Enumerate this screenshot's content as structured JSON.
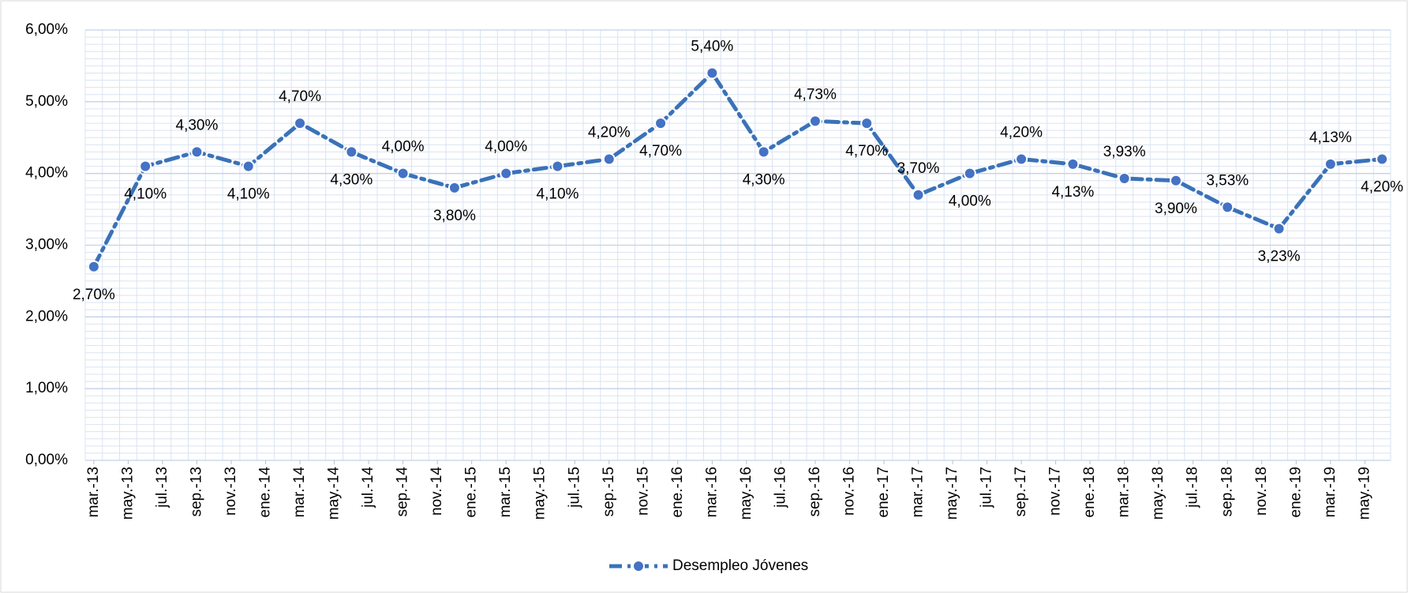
{
  "chart_data": {
    "type": "line",
    "x": [
      "2013-03",
      "2013-06",
      "2013-09",
      "2013-12",
      "2014-03",
      "2014-06",
      "2014-09",
      "2014-12",
      "2015-03",
      "2015-06",
      "2015-09",
      "2015-12",
      "2016-03",
      "2016-06",
      "2016-09",
      "2016-12",
      "2017-03",
      "2017-06",
      "2017-09",
      "2017-12",
      "2018-03",
      "2018-06",
      "2018-09",
      "2018-12",
      "2019-03",
      "2019-06"
    ],
    "series": [
      {
        "name": "Desempleo Jóvenes",
        "color": "#3a72b8",
        "values": [
          2.7,
          4.1,
          4.3,
          4.1,
          4.7,
          4.3,
          4.0,
          3.8,
          4.0,
          4.1,
          4.2,
          4.7,
          5.4,
          4.3,
          4.73,
          4.7,
          3.7,
          4.0,
          4.2,
          4.13,
          3.93,
          3.9,
          3.53,
          3.23,
          4.13,
          4.2
        ],
        "value_labels": [
          "2,70%",
          "4,10%",
          "4,30%",
          "4,10%",
          "4,70%",
          "4,30%",
          "4,00%",
          "3,80%",
          "4,00%",
          "4,10%",
          "4,20%",
          "4,70%",
          "5,40%",
          "4,30%",
          "4,73%",
          "4,70%",
          "3,70%",
          "4,00%",
          "4,20%",
          "4,13%",
          "3,93%",
          "3,90%",
          "3,53%",
          "3,23%",
          "4,13%",
          "4,20%"
        ]
      }
    ],
    "xlim": [
      "2013-03",
      "2019-06"
    ],
    "xticks": [
      {
        "value": "2013-03",
        "label": "mar.-13"
      },
      {
        "value": "2013-05",
        "label": "may.-13"
      },
      {
        "value": "2013-07",
        "label": "jul.-13"
      },
      {
        "value": "2013-09",
        "label": "sep.-13"
      },
      {
        "value": "2013-11",
        "label": "nov.-13"
      },
      {
        "value": "2014-01",
        "label": "ene.-14"
      },
      {
        "value": "2014-03",
        "label": "mar.-14"
      },
      {
        "value": "2014-05",
        "label": "may.-14"
      },
      {
        "value": "2014-07",
        "label": "jul.-14"
      },
      {
        "value": "2014-09",
        "label": "sep.-14"
      },
      {
        "value": "2014-11",
        "label": "nov.-14"
      },
      {
        "value": "2015-01",
        "label": "ene.-15"
      },
      {
        "value": "2015-03",
        "label": "mar.-15"
      },
      {
        "value": "2015-05",
        "label": "may.-15"
      },
      {
        "value": "2015-07",
        "label": "jul.-15"
      },
      {
        "value": "2015-09",
        "label": "sep.-15"
      },
      {
        "value": "2015-11",
        "label": "nov.-15"
      },
      {
        "value": "2016-01",
        "label": "ene.-16"
      },
      {
        "value": "2016-03",
        "label": "mar.-16"
      },
      {
        "value": "2016-05",
        "label": "may.-16"
      },
      {
        "value": "2016-07",
        "label": "jul.-16"
      },
      {
        "value": "2016-09",
        "label": "sep.-16"
      },
      {
        "value": "2016-11",
        "label": "nov.-16"
      },
      {
        "value": "2017-01",
        "label": "ene.-17"
      },
      {
        "value": "2017-03",
        "label": "mar.-17"
      },
      {
        "value": "2017-05",
        "label": "may.-17"
      },
      {
        "value": "2017-07",
        "label": "jul.-17"
      },
      {
        "value": "2017-09",
        "label": "sep.-17"
      },
      {
        "value": "2017-11",
        "label": "nov.-17"
      },
      {
        "value": "2018-01",
        "label": "ene.-18"
      },
      {
        "value": "2018-03",
        "label": "mar.-18"
      },
      {
        "value": "2018-05",
        "label": "may.-18"
      },
      {
        "value": "2018-07",
        "label": "jul.-18"
      },
      {
        "value": "2018-09",
        "label": "sep.-18"
      },
      {
        "value": "2018-11",
        "label": "nov.-18"
      },
      {
        "value": "2019-01",
        "label": "ene.-19"
      },
      {
        "value": "2019-03",
        "label": "mar.-19"
      },
      {
        "value": "2019-05",
        "label": "may.-19"
      }
    ],
    "ylim": [
      0,
      6
    ],
    "yticks": [
      {
        "value": 0,
        "label": "0,00%"
      },
      {
        "value": 1,
        "label": "1,00%"
      },
      {
        "value": 2,
        "label": "2,00%"
      },
      {
        "value": 3,
        "label": "3,00%"
      },
      {
        "value": 4,
        "label": "4,00%"
      },
      {
        "value": 5,
        "label": "5,00%"
      },
      {
        "value": 6,
        "label": "6,00%"
      }
    ],
    "grid": true,
    "minor_grid": true,
    "legend": "bottom"
  }
}
